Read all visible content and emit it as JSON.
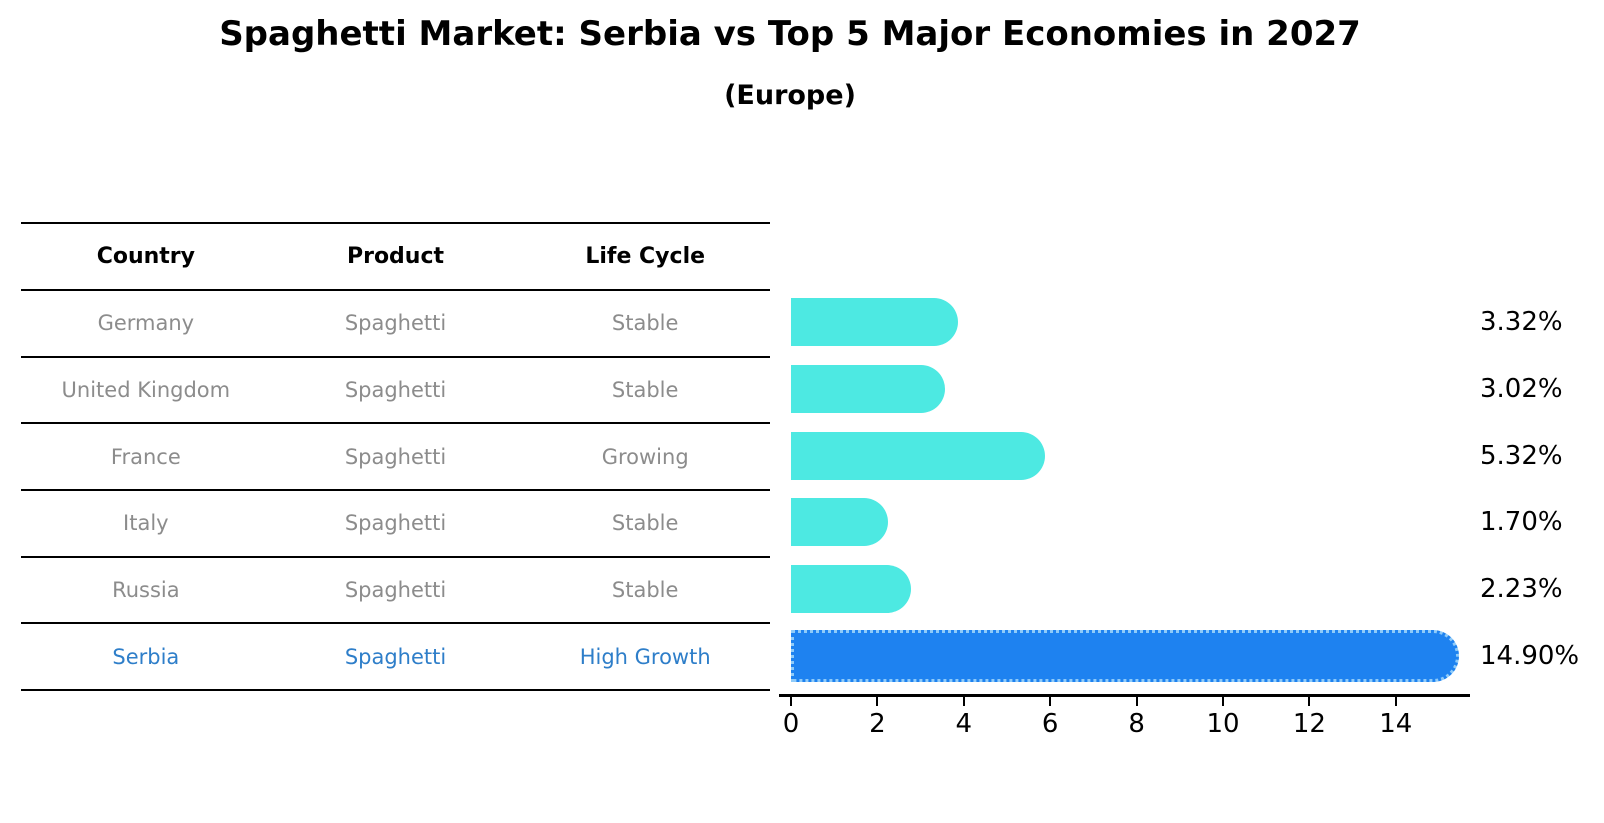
{
  "title": "Spaghetti Market: Serbia vs Top 5 Major Economies in 2027",
  "subtitle": "(Europe)",
  "table": {
    "headers": [
      "Country",
      "Product",
      "Life Cycle"
    ],
    "rows": [
      {
        "country": "Germany",
        "product": "Spaghetti",
        "life_cycle": "Stable",
        "highlight": false
      },
      {
        "country": "United Kingdom",
        "product": "Spaghetti",
        "life_cycle": "Stable",
        "highlight": false
      },
      {
        "country": "France",
        "product": "Spaghetti",
        "life_cycle": "Growing",
        "highlight": false
      },
      {
        "country": "Italy",
        "product": "Spaghetti",
        "life_cycle": "Stable",
        "highlight": false
      },
      {
        "country": "Russia",
        "product": "Spaghetti",
        "life_cycle": "Stable",
        "highlight": false
      },
      {
        "country": "Serbia",
        "product": "Spaghetti",
        "life_cycle": "High Growth",
        "highlight": true
      }
    ]
  },
  "chart_data": {
    "type": "bar",
    "orientation": "horizontal",
    "title": "Spaghetti Market: Serbia vs Top 5 Major Economies in 2027",
    "subtitle": "(Europe)",
    "categories": [
      "Germany",
      "United Kingdom",
      "France",
      "Italy",
      "Russia",
      "Serbia"
    ],
    "values": [
      3.32,
      3.02,
      5.32,
      1.7,
      2.23,
      14.9
    ],
    "value_labels": [
      "3.32%",
      "3.02%",
      "5.32%",
      "1.70%",
      "2.23%",
      "14.90%"
    ],
    "x_ticks": [
      0,
      2,
      4,
      6,
      8,
      10,
      12,
      14
    ],
    "xlim": [
      0,
      15.7
    ],
    "grid": false,
    "legend": false,
    "highlight_index": 5,
    "bar_color": "#4DE9E2",
    "highlight_bar_color": "#1E82F0",
    "highlight_text_color": "#2E7EC9",
    "text_color": "#8C8C8C",
    "axis_color": "#000000"
  }
}
